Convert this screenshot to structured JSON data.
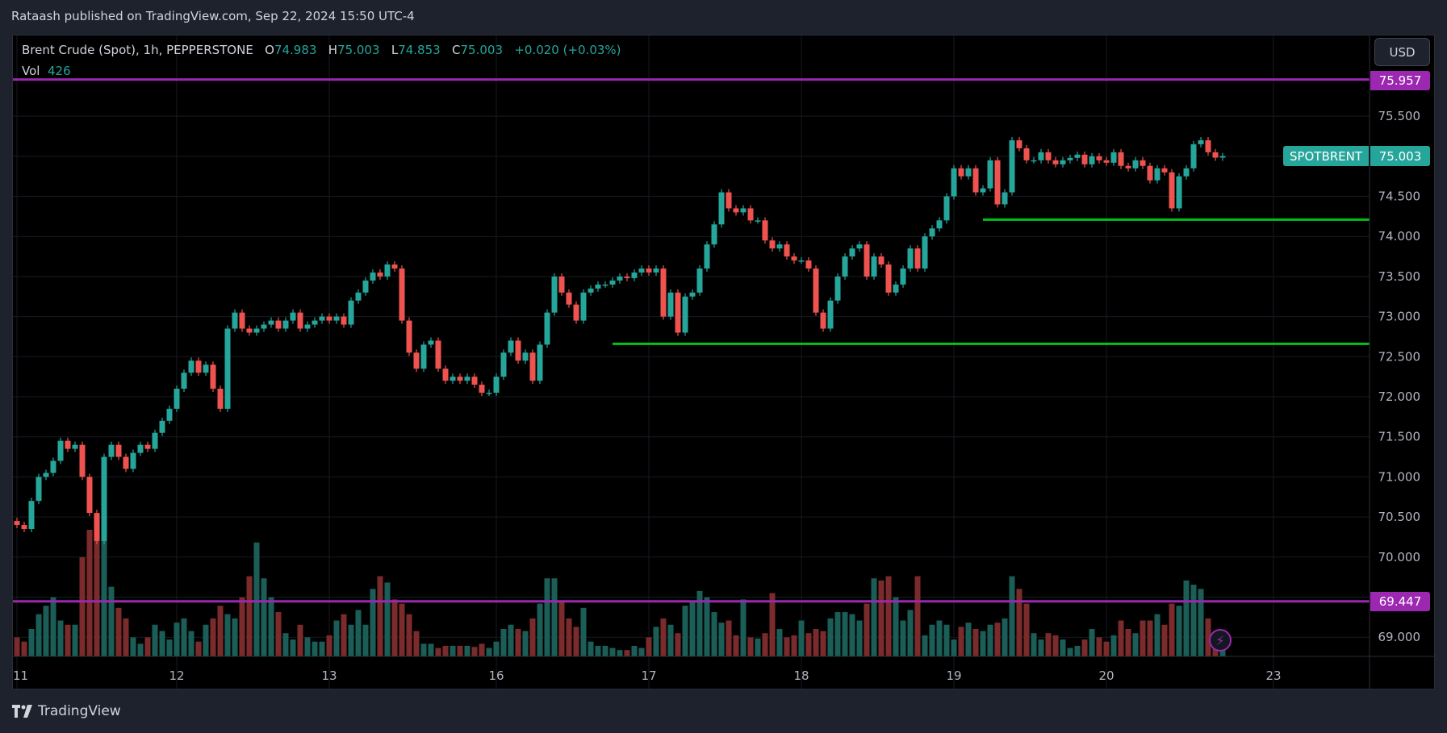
{
  "header": {
    "published": "Rataash published on TradingView.com, Sep 22, 2024 15:50 UTC-4"
  },
  "legend": {
    "symbol": "Brent Crude (Spot), 1h, PEPPERSTONE",
    "o_label": "O",
    "o": "74.983",
    "h_label": "H",
    "h": "75.003",
    "l_label": "L",
    "l": "74.853",
    "c_label": "C",
    "c": "75.003",
    "change": "+0.020 (+0.03%)",
    "vol_label": "Vol",
    "vol": "426"
  },
  "price_axis": {
    "currency": "USD",
    "ticks": [
      "75.500",
      "75.000",
      "74.500",
      "74.000",
      "73.500",
      "73.000",
      "72.500",
      "72.000",
      "71.500",
      "71.000",
      "70.500",
      "70.000",
      "69.500",
      "69.000"
    ]
  },
  "last_price": {
    "symbol": "SPOTBRENT",
    "value": "75.003",
    "color": "#26a69a"
  },
  "footer": {
    "brand": "TradingView"
  },
  "colors": {
    "up": "#26a69a",
    "down": "#ef5350",
    "vol_up": "#1b5e57",
    "vol_down": "#7b2b2b",
    "level": "#9c27b0",
    "support": "#00c31a"
  },
  "chart_data": {
    "type": "candlestick",
    "ylim": [
      68.85,
      76.2
    ],
    "x_ticks": [
      {
        "label": "11",
        "bar": 0
      },
      {
        "label": "12",
        "bar": 22
      },
      {
        "label": "13",
        "bar": 43
      },
      {
        "label": "16",
        "bar": 66
      },
      {
        "label": "17",
        "bar": 87
      },
      {
        "label": "18",
        "bar": 108
      },
      {
        "label": "19",
        "bar": 129
      },
      {
        "label": "20",
        "bar": 150
      },
      {
        "label": "23",
        "bar": 173
      }
    ],
    "first_open": 70.45,
    "closes": [
      70.4,
      70.35,
      70.7,
      71.0,
      71.05,
      71.2,
      71.45,
      71.35,
      71.4,
      71.0,
      70.55,
      70.2,
      71.25,
      71.4,
      71.25,
      71.1,
      71.3,
      71.4,
      71.35,
      71.55,
      71.7,
      71.85,
      72.1,
      72.3,
      72.45,
      72.3,
      72.4,
      72.1,
      71.85,
      72.85,
      73.05,
      72.85,
      72.8,
      72.85,
      72.9,
      72.95,
      72.85,
      72.95,
      73.05,
      72.85,
      72.9,
      72.95,
      73.0,
      72.95,
      73.0,
      72.9,
      73.2,
      73.3,
      73.45,
      73.55,
      73.5,
      73.65,
      73.6,
      72.95,
      72.55,
      72.35,
      72.65,
      72.7,
      72.35,
      72.2,
      72.25,
      72.2,
      72.25,
      72.15,
      72.05,
      72.05,
      72.25,
      72.55,
      72.7,
      72.45,
      72.55,
      72.2,
      72.65,
      73.05,
      73.5,
      73.3,
      73.15,
      72.95,
      73.3,
      73.35,
      73.4,
      73.4,
      73.45,
      73.5,
      73.48,
      73.55,
      73.6,
      73.55,
      73.6,
      73.0,
      73.3,
      72.8,
      73.25,
      73.3,
      73.6,
      73.9,
      74.15,
      74.55,
      74.35,
      74.3,
      74.35,
      74.2,
      74.2,
      73.95,
      73.85,
      73.9,
      73.75,
      73.7,
      73.7,
      73.6,
      73.05,
      72.85,
      73.2,
      73.5,
      73.75,
      73.85,
      73.9,
      73.5,
      73.75,
      73.65,
      73.3,
      73.4,
      73.6,
      73.85,
      73.6,
      74.0,
      74.1,
      74.2,
      74.5,
      74.85,
      74.75,
      74.85,
      74.55,
      74.6,
      74.95,
      74.4,
      74.55,
      75.2,
      75.1,
      74.95,
      74.95,
      75.05,
      74.95,
      74.9,
      74.95,
      74.98,
      75.02,
      74.9,
      75.0,
      74.95,
      74.92,
      75.05,
      74.88,
      74.85,
      74.95,
      74.88,
      74.7,
      74.85,
      74.8,
      74.35,
      74.75,
      74.85,
      75.15,
      75.2,
      75.05,
      74.983,
      75.003
    ],
    "volumes": [
      900,
      700,
      1300,
      2000,
      2400,
      2800,
      1700,
      1500,
      1500,
      4700,
      6000,
      6000,
      6000,
      3300,
      2300,
      1800,
      900,
      600,
      900,
      1500,
      1200,
      800,
      1600,
      1800,
      1200,
      700,
      1500,
      1800,
      2400,
      2000,
      1800,
      2800,
      3800,
      5400,
      3700,
      2800,
      2100,
      1100,
      800,
      1500,
      900,
      700,
      700,
      1000,
      1700,
      2000,
      1500,
      2200,
      1500,
      3200,
      3800,
      3500,
      2700,
      2500,
      2000,
      1200,
      600,
      600,
      400,
      500,
      500,
      500,
      500,
      450,
      600,
      400,
      700,
      1300,
      1500,
      1300,
      1200,
      1800,
      2500,
      3700,
      3700,
      2600,
      1800,
      1400,
      2300,
      700,
      500,
      500,
      400,
      300,
      300,
      500,
      400,
      900,
      1400,
      1800,
      1500,
      1100,
      2400,
      2600,
      3100,
      2800,
      2100,
      1600,
      1700,
      1000,
      2700,
      900,
      850,
      1100,
      3000,
      1300,
      900,
      1000,
      1700,
      1100,
      1300,
      1200,
      1800,
      2100,
      2100,
      2000,
      1700,
      2500,
      3700,
      3600,
      3800,
      2800,
      1700,
      2200,
      3800,
      1000,
      1500,
      1700,
      1500,
      800,
      1400,
      1600,
      1300,
      1200,
      1500,
      1600,
      1800,
      3800,
      3200,
      2500,
      1100,
      800,
      1100,
      1000,
      800,
      400,
      500,
      800,
      1300,
      900,
      700,
      1000,
      1700,
      1300,
      1100,
      1700,
      1700,
      2000,
      1500,
      2500,
      2400,
      3600,
      3400,
      3200,
      1800,
      900,
      426
    ],
    "levels": [
      {
        "price": "75.957",
        "color": "#9c27b0"
      },
      {
        "price": "69.447",
        "color": "#9c27b0"
      }
    ],
    "support_lines": [
      {
        "price": 74.21,
        "from_bar": 133
      },
      {
        "price": 72.66,
        "from_bar": 82
      }
    ]
  }
}
